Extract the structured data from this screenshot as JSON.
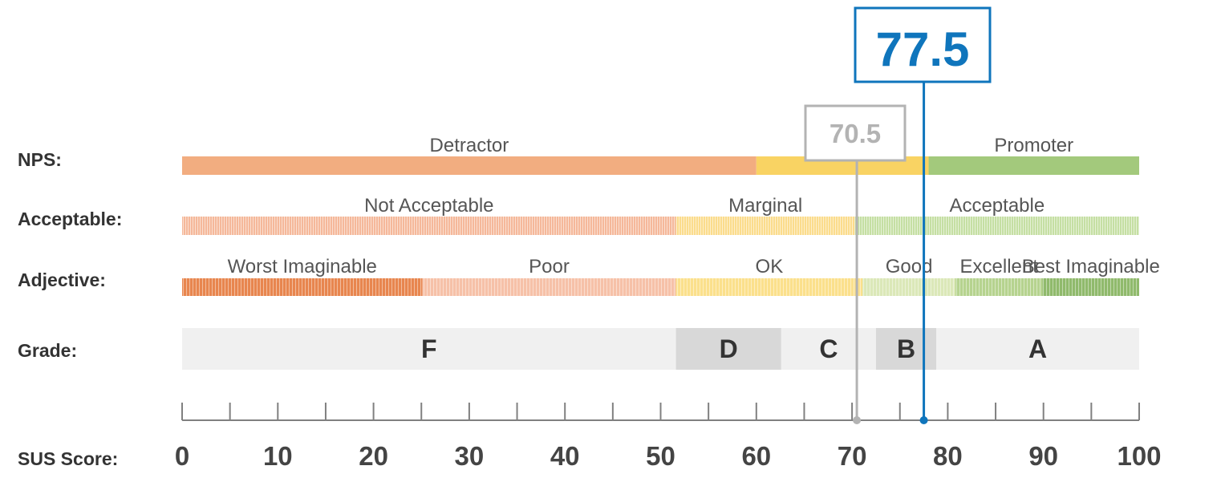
{
  "chart_data": {
    "type": "bar",
    "xlabel": "SUS Score:",
    "xlim": [
      0,
      100
    ],
    "x_ticks": [
      "0",
      "10",
      "20",
      "30",
      "40",
      "50",
      "60",
      "70",
      "80",
      "90",
      "100"
    ],
    "rows": [
      {
        "label": "NPS:",
        "segments": [
          {
            "label": "Detractor",
            "from": 0,
            "to": 60,
            "color": "#f2ad80"
          },
          {
            "label": "",
            "from": 60,
            "to": 78,
            "color": "#f9d363"
          },
          {
            "label": "Promoter",
            "from": 78,
            "to": 100,
            "color": "#a3c97c"
          }
        ]
      },
      {
        "label": "Acceptable:",
        "segments": [
          {
            "label": "Not Acceptable",
            "from": 0,
            "to": 51.6,
            "color": "#f5b89a"
          },
          {
            "label": "Marginal",
            "from": 51.6,
            "to": 70.3,
            "color": "#fbdc8c"
          },
          {
            "label": "Acceptable",
            "from": 70.3,
            "to": 100,
            "color": "#c5dfa3"
          }
        ]
      },
      {
        "label": "Adjective:",
        "segments": [
          {
            "label": "Worst Imaginable",
            "from": 0,
            "to": 25.1,
            "color": "#e8864f"
          },
          {
            "label": "Poor",
            "from": 25.1,
            "to": 51.6,
            "color": "#f6c1a8"
          },
          {
            "label": "OK",
            "from": 51.6,
            "to": 71.1,
            "color": "#fbe08c"
          },
          {
            "label": "Good",
            "from": 71.1,
            "to": 80.8,
            "color": "#dbe8b8"
          },
          {
            "label": "Excellent",
            "from": 80.8,
            "to": 89.9,
            "color": "#b6d38f"
          },
          {
            "label": "Best Imaginable",
            "from": 89.9,
            "to": 100,
            "color": "#90ba6c"
          }
        ]
      },
      {
        "label": "Grade:",
        "segments": [
          {
            "label": "F",
            "from": 0,
            "to": 51.6,
            "color": "#f0f0f0"
          },
          {
            "label": "D",
            "from": 51.6,
            "to": 62.6,
            "color": "#d8d8d8"
          },
          {
            "label": "C",
            "from": 62.6,
            "to": 72.5,
            "color": "#f0f0f0"
          },
          {
            "label": "B",
            "from": 72.5,
            "to": 78.8,
            "color": "#d8d8d8"
          },
          {
            "label": "A",
            "from": 78.8,
            "to": 100,
            "color": "#f0f0f0"
          }
        ]
      }
    ],
    "markers": [
      {
        "value": 77.5,
        "label": "77.5",
        "color": "#0f75bc"
      },
      {
        "value": 70.5,
        "label": "70.5",
        "color": "#b3b3b3"
      }
    ],
    "colors": {
      "axis": "#808080",
      "text": "#333333"
    }
  }
}
